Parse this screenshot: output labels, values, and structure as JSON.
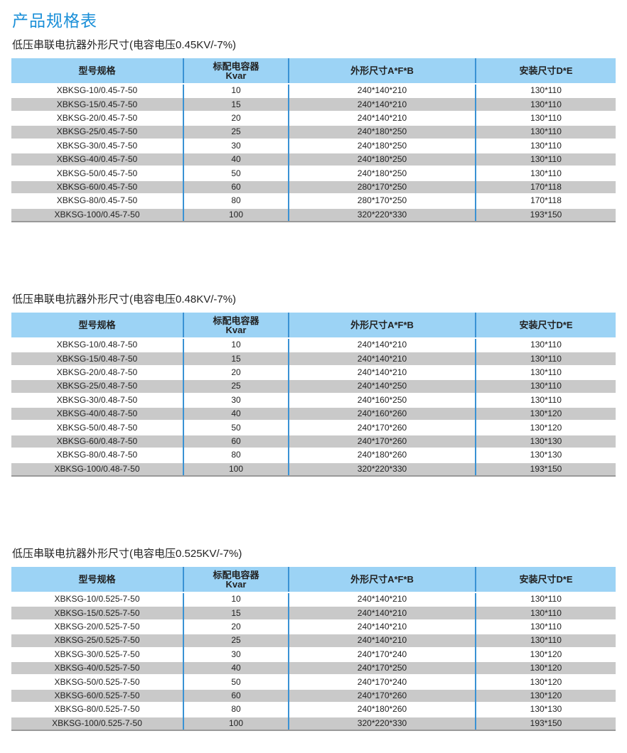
{
  "page_title": "产品规格表",
  "colors": {
    "accent": "#1a8fd8",
    "header_bg": "#9cd3f5",
    "row_alt": "#c9c9c9",
    "divider": "#3a92d4"
  },
  "headers": [
    "型号规格",
    "标配电容器",
    "Kvar",
    "外形尺寸A*F*B",
    "安装尺寸D*E"
  ],
  "tables": [
    {
      "subtitle": "低压串联电抗器外形尺寸(电容电压0.45KV/-7%)",
      "rows": [
        [
          "XBKSG-10/0.45-7-50",
          "10",
          "240*140*210",
          "130*110"
        ],
        [
          "XBKSG-15/0.45-7-50",
          "15",
          "240*140*210",
          "130*110"
        ],
        [
          "XBKSG-20/0.45-7-50",
          "20",
          "240*140*210",
          "130*110"
        ],
        [
          "XBKSG-25/0.45-7-50",
          "25",
          "240*180*250",
          "130*110"
        ],
        [
          "XBKSG-30/0.45-7-50",
          "30",
          "240*180*250",
          "130*110"
        ],
        [
          "XBKSG-40/0.45-7-50",
          "40",
          "240*180*250",
          "130*110"
        ],
        [
          "XBKSG-50/0.45-7-50",
          "50",
          "240*180*250",
          "130*110"
        ],
        [
          "XBKSG-60/0.45-7-50",
          "60",
          "280*170*250",
          "170*118"
        ],
        [
          "XBKSG-80/0.45-7-50",
          "80",
          "280*170*250",
          "170*118"
        ],
        [
          "XBKSG-100/0.45-7-50",
          "100",
          "320*220*330",
          "193*150"
        ]
      ]
    },
    {
      "subtitle": "低压串联电抗器外形尺寸(电容电压0.48KV/-7%)",
      "rows": [
        [
          "XBKSG-10/0.48-7-50",
          "10",
          "240*140*210",
          "130*110"
        ],
        [
          "XBKSG-15/0.48-7-50",
          "15",
          "240*140*210",
          "130*110"
        ],
        [
          "XBKSG-20/0.48-7-50",
          "20",
          "240*140*210",
          "130*110"
        ],
        [
          "XBKSG-25/0.48-7-50",
          "25",
          "240*140*250",
          "130*110"
        ],
        [
          "XBKSG-30/0.48-7-50",
          "30",
          "240*160*250",
          "130*110"
        ],
        [
          "XBKSG-40/0.48-7-50",
          "40",
          "240*160*260",
          "130*120"
        ],
        [
          "XBKSG-50/0.48-7-50",
          "50",
          "240*170*260",
          "130*120"
        ],
        [
          "XBKSG-60/0.48-7-50",
          "60",
          "240*170*260",
          "130*130"
        ],
        [
          "XBKSG-80/0.48-7-50",
          "80",
          "240*180*260",
          "130*130"
        ],
        [
          "XBKSG-100/0.48-7-50",
          "100",
          "320*220*330",
          "193*150"
        ]
      ]
    },
    {
      "subtitle": "低压串联电抗器外形尺寸(电容电压0.525KV/-7%)",
      "rows": [
        [
          "XBKSG-10/0.525-7-50",
          "10",
          "240*140*210",
          "130*110"
        ],
        [
          "XBKSG-15/0.525-7-50",
          "15",
          "240*140*210",
          "130*110"
        ],
        [
          "XBKSG-20/0.525-7-50",
          "20",
          "240*140*210",
          "130*110"
        ],
        [
          "XBKSG-25/0.525-7-50",
          "25",
          "240*140*210",
          "130*110"
        ],
        [
          "XBKSG-30/0.525-7-50",
          "30",
          "240*170*240",
          "130*120"
        ],
        [
          "XBKSG-40/0.525-7-50",
          "40",
          "240*170*250",
          "130*120"
        ],
        [
          "XBKSG-50/0.525-7-50",
          "50",
          "240*170*240",
          "130*120"
        ],
        [
          "XBKSG-60/0.525-7-50",
          "60",
          "240*170*260",
          "130*120"
        ],
        [
          "XBKSG-80/0.525-7-50",
          "80",
          "240*180*260",
          "130*130"
        ],
        [
          "XBKSG-100/0.525-7-50",
          "100",
          "320*220*330",
          "193*150"
        ]
      ]
    }
  ]
}
